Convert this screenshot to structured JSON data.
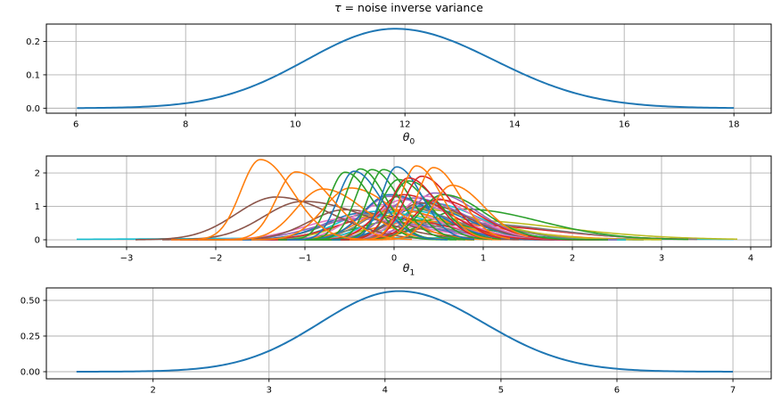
{
  "figure": {
    "background": "#ffffff",
    "grid_color": "#b0b0b0",
    "spine_color": "#000000",
    "tick_color": "#000000",
    "text_color": "#000000",
    "default_line_color": "#1f77b4",
    "palette": [
      "#1f77b4",
      "#ff7f0e",
      "#2ca02c",
      "#d62728",
      "#9467bd",
      "#8c564b",
      "#e377c2",
      "#7f7f7f",
      "#bcbd22",
      "#17becf"
    ]
  },
  "titles": {
    "tau": {
      "prefix": "τ",
      "rest": " = noise inverse variance"
    },
    "theta0": {
      "base": "θ",
      "sub": "0"
    },
    "theta1": {
      "base": "θ",
      "sub": "1"
    }
  },
  "chart_data": [
    {
      "id": "tau",
      "type": "line",
      "title": "τ = noise inverse variance",
      "curve_model": "piecewise-gaussian",
      "grid": true,
      "xlim": [
        5.46,
        18.68
      ],
      "ylim": [
        -0.015,
        0.252
      ],
      "xticks": [
        {
          "v": 6,
          "label": "6"
        },
        {
          "v": 8,
          "label": "8"
        },
        {
          "v": 10,
          "label": "10"
        },
        {
          "v": 12,
          "label": "12"
        },
        {
          "v": 14,
          "label": "14"
        },
        {
          "v": 16,
          "label": "16"
        },
        {
          "v": 18,
          "label": "18"
        }
      ],
      "yticks": [
        {
          "v": 0,
          "label": "0.0"
        },
        {
          "v": 0.1,
          "label": "0.1"
        },
        {
          "v": 0.2,
          "label": "0.2"
        }
      ],
      "peak": {
        "x": 11.8,
        "y": 0.24
      },
      "curves": [
        {
          "color": "#1f77b4",
          "mu": 11.82,
          "peak": 0.238,
          "sigma_left": 1.62,
          "sigma_right": 1.8,
          "x_start": 6.02,
          "x_end": 18.0
        }
      ]
    },
    {
      "id": "theta0",
      "type": "line",
      "title": "θ0",
      "curve_model": "piecewise-gaussian",
      "grid": true,
      "xlim": [
        -3.9,
        4.23
      ],
      "ylim": [
        -0.213,
        2.507
      ],
      "xticks": [
        {
          "v": -3,
          "label": "−3"
        },
        {
          "v": -2,
          "label": "−2"
        },
        {
          "v": -1,
          "label": "−1"
        },
        {
          "v": 0,
          "label": "0"
        },
        {
          "v": 1,
          "label": "1"
        },
        {
          "v": 2,
          "label": "2"
        },
        {
          "v": 3,
          "label": "3"
        },
        {
          "v": 4,
          "label": "4"
        }
      ],
      "yticks": [
        {
          "v": 0,
          "label": "0"
        },
        {
          "v": 1,
          "label": "1"
        },
        {
          "v": 2,
          "label": "2"
        }
      ],
      "y_max_observed": 2.4,
      "curves": [
        {
          "color": "#17becf",
          "mu": 0.1,
          "peak": 0.06,
          "sigma_left": 2.2,
          "sigma_right": 2.2,
          "x_start": -3.56,
          "x_end": 3.81
        },
        {
          "color": "#bcbd22",
          "mu": 0.55,
          "peak": 0.62,
          "sigma_left": 0.55,
          "sigma_right": 1.25,
          "x_start": -2.2,
          "x_end": 3.85
        },
        {
          "color": "#e377c2",
          "mu": 0.6,
          "peak": 0.5,
          "sigma_left": 0.55,
          "sigma_right": 1.05,
          "x_start": -2.2,
          "x_end": 3.4
        },
        {
          "color": "#d62728",
          "mu": 0.75,
          "peak": 0.45,
          "sigma_left": 0.6,
          "sigma_right": 1.0,
          "x_start": -2.0,
          "x_end": 3.3
        },
        {
          "color": "#7f7f7f",
          "mu": 0.8,
          "peak": 0.5,
          "sigma_left": 0.55,
          "sigma_right": 0.95,
          "x_start": -1.8,
          "x_end": 3.4
        },
        {
          "color": "#2ca02c",
          "mu": 0.78,
          "peak": 0.92,
          "sigma_left": 0.4,
          "sigma_right": 0.85,
          "x_start": -1.6,
          "x_end": 3.3
        },
        {
          "color": "#bcbd22",
          "mu": -0.1,
          "peak": 0.8,
          "sigma_left": 0.45,
          "sigma_right": 0.75,
          "x_start": -2.2,
          "x_end": 2.6
        },
        {
          "color": "#17becf",
          "mu": -0.2,
          "peak": 0.85,
          "sigma_left": 0.42,
          "sigma_right": 0.65,
          "x_start": -2.2,
          "x_end": 2.4
        },
        {
          "color": "#7f7f7f",
          "mu": -0.3,
          "peak": 0.75,
          "sigma_left": 0.45,
          "sigma_right": 0.7,
          "x_start": -2.4,
          "x_end": 2.4
        },
        {
          "color": "#1f77b4",
          "mu": -0.35,
          "peak": 0.8,
          "sigma_left": 0.42,
          "sigma_right": 0.62,
          "x_start": -2.4,
          "x_end": 2.2
        },
        {
          "color": "#d62728",
          "mu": -0.15,
          "peak": 0.7,
          "sigma_left": 0.48,
          "sigma_right": 0.7,
          "x_start": -2.4,
          "x_end": 2.4
        },
        {
          "color": "#9467bd",
          "mu": -0.4,
          "peak": 0.62,
          "sigma_left": 0.5,
          "sigma_right": 0.8,
          "x_start": -2.5,
          "x_end": 2.5
        },
        {
          "color": "#2ca02c",
          "mu": 0.1,
          "peak": 0.6,
          "sigma_left": 0.5,
          "sigma_right": 0.8,
          "x_start": -2.2,
          "x_end": 2.8
        },
        {
          "color": "#ff7f0e",
          "mu": 0.3,
          "peak": 0.55,
          "sigma_left": 0.55,
          "sigma_right": 0.9,
          "x_start": -2.2,
          "x_end": 3.0
        },
        {
          "color": "#e377c2",
          "mu": -0.5,
          "peak": 0.65,
          "sigma_left": 0.5,
          "sigma_right": 0.75,
          "x_start": -2.5,
          "x_end": 2.2
        },
        {
          "color": "#8c564b",
          "mu": -0.55,
          "peak": 0.9,
          "sigma_left": 0.4,
          "sigma_right": 0.6,
          "x_start": -2.4,
          "x_end": 2.0
        },
        {
          "color": "#17becf",
          "mu": 0.1,
          "peak": 0.9,
          "sigma_left": 0.36,
          "sigma_right": 0.6,
          "x_start": -1.8,
          "x_end": 2.6
        },
        {
          "color": "#7f7f7f",
          "mu": 0.35,
          "peak": 0.9,
          "sigma_left": 0.36,
          "sigma_right": 0.68,
          "x_start": -1.6,
          "x_end": 2.8
        },
        {
          "color": "#bcbd22",
          "mu": 0.2,
          "peak": 0.95,
          "sigma_left": 0.36,
          "sigma_right": 0.8,
          "x_start": -1.7,
          "x_end": 3.0
        },
        {
          "color": "#17becf",
          "mu": 0.4,
          "peak": 1.1,
          "sigma_left": 0.32,
          "sigma_right": 0.55,
          "x_start": -1.4,
          "x_end": 2.6
        },
        {
          "color": "#e377c2",
          "mu": -0.15,
          "peak": 1.05,
          "sigma_left": 0.34,
          "sigma_right": 0.58,
          "x_start": -1.9,
          "x_end": 2.2
        },
        {
          "color": "#7f7f7f",
          "mu": 0.05,
          "peak": 1.0,
          "sigma_left": 0.36,
          "sigma_right": 0.6,
          "x_start": -1.8,
          "x_end": 2.4
        },
        {
          "color": "#1f77b4",
          "mu": 0.3,
          "peak": 1.0,
          "sigma_left": 0.33,
          "sigma_right": 0.52,
          "x_start": -1.4,
          "x_end": 2.3
        },
        {
          "color": "#ff7f0e",
          "mu": 0.0,
          "peak": 0.9,
          "sigma_left": 0.38,
          "sigma_right": 0.6,
          "x_start": -1.9,
          "x_end": 2.4
        },
        {
          "color": "#9467bd",
          "mu": 0.2,
          "peak": 1.25,
          "sigma_left": 0.3,
          "sigma_right": 0.58,
          "x_start": -1.5,
          "x_end": 2.5
        },
        {
          "color": "#e377c2",
          "mu": 0.1,
          "peak": 1.2,
          "sigma_left": 0.3,
          "sigma_right": 0.55,
          "x_start": -1.5,
          "x_end": 2.3
        },
        {
          "color": "#9467bd",
          "mu": -0.05,
          "peak": 1.3,
          "sigma_left": 0.3,
          "sigma_right": 0.52,
          "x_start": -1.7,
          "x_end": 2.2
        },
        {
          "color": "#1f77b4",
          "mu": -0.05,
          "peak": 1.35,
          "sigma_left": 0.3,
          "sigma_right": 0.5,
          "x_start": -1.7,
          "x_end": 2.1
        },
        {
          "color": "#d62728",
          "mu": 0.1,
          "peak": 1.35,
          "sigma_left": 0.28,
          "sigma_right": 0.5,
          "x_start": -1.5,
          "x_end": 2.2
        },
        {
          "color": "#8c564b",
          "mu": 0.3,
          "peak": 1.1,
          "sigma_left": 0.3,
          "sigma_right": 0.52,
          "x_start": -1.3,
          "x_end": 2.3
        },
        {
          "color": "#9467bd",
          "mu": 0.45,
          "peak": 1.4,
          "sigma_left": 0.26,
          "sigma_right": 0.48,
          "x_start": -1.1,
          "x_end": 2.3
        },
        {
          "color": "#e377c2",
          "mu": 0.35,
          "peak": 1.3,
          "sigma_left": 0.28,
          "sigma_right": 0.5,
          "x_start": -1.2,
          "x_end": 2.3
        },
        {
          "color": "#d62728",
          "mu": 0.5,
          "peak": 1.2,
          "sigma_left": 0.27,
          "sigma_right": 0.46,
          "x_start": -1.0,
          "x_end": 2.3
        },
        {
          "color": "#2ca02c",
          "mu": 0.55,
          "peak": 1.35,
          "sigma_left": 0.26,
          "sigma_right": 0.46,
          "x_start": -1.0,
          "x_end": 2.4
        },
        {
          "color": "#8c564b",
          "mu": -1.32,
          "peak": 1.28,
          "sigma_left": 0.45,
          "sigma_right": 0.62,
          "x_start": -2.9,
          "x_end": 0.9
        },
        {
          "color": "#8c564b",
          "mu": -1.02,
          "peak": 1.15,
          "sigma_left": 0.44,
          "sigma_right": 0.72,
          "x_start": -2.6,
          "x_end": 1.4
        },
        {
          "color": "#ff7f0e",
          "mu": -0.8,
          "peak": 1.52,
          "sigma_left": 0.3,
          "sigma_right": 0.46,
          "x_start": -1.9,
          "x_end": 0.9
        },
        {
          "color": "#ff7f0e",
          "mu": -0.49,
          "peak": 1.55,
          "sigma_left": 0.3,
          "sigma_right": 0.48,
          "x_start": -1.6,
          "x_end": 1.2
        },
        {
          "color": "#2ca02c",
          "mu": -0.55,
          "peak": 2.02,
          "sigma_left": 0.18,
          "sigma_right": 0.3,
          "x_start": -1.3,
          "x_end": 0.6
        },
        {
          "color": "#2ca02c",
          "mu": -0.38,
          "peak": 2.12,
          "sigma_left": 0.17,
          "sigma_right": 0.28,
          "x_start": -1.1,
          "x_end": 0.7
        },
        {
          "color": "#2ca02c",
          "mu": -0.25,
          "peak": 2.1,
          "sigma_left": 0.18,
          "sigma_right": 0.3,
          "x_start": -1.0,
          "x_end": 0.8
        },
        {
          "color": "#2ca02c",
          "mu": -0.12,
          "peak": 2.1,
          "sigma_left": 0.17,
          "sigma_right": 0.3,
          "x_start": -0.9,
          "x_end": 0.9
        },
        {
          "color": "#2ca02c",
          "mu": 0.05,
          "peak": 1.8,
          "sigma_left": 0.2,
          "sigma_right": 0.33,
          "x_start": -0.8,
          "x_end": 1.1
        },
        {
          "color": "#2ca02c",
          "mu": 0.16,
          "peak": 1.76,
          "sigma_left": 0.2,
          "sigma_right": 0.35,
          "x_start": -0.7,
          "x_end": 1.2
        },
        {
          "color": "#1f77b4",
          "mu": -0.45,
          "peak": 2.05,
          "sigma_left": 0.18,
          "sigma_right": 0.3,
          "x_start": -1.2,
          "x_end": 0.6
        },
        {
          "color": "#1f77b4",
          "mu": 0.03,
          "peak": 2.18,
          "sigma_left": 0.17,
          "sigma_right": 0.28,
          "x_start": -0.7,
          "x_end": 0.9
        },
        {
          "color": "#d62728",
          "mu": 0.16,
          "peak": 1.85,
          "sigma_left": 0.2,
          "sigma_right": 0.32,
          "x_start": -0.6,
          "x_end": 1.1
        },
        {
          "color": "#d62728",
          "mu": 0.31,
          "peak": 1.9,
          "sigma_left": 0.2,
          "sigma_right": 0.33,
          "x_start": -0.5,
          "x_end": 1.2
        },
        {
          "color": "#ff7f0e",
          "mu": 0.25,
          "peak": 2.21,
          "sigma_left": 0.17,
          "sigma_right": 0.28,
          "x_start": -0.5,
          "x_end": 1.1
        },
        {
          "color": "#ff7f0e",
          "mu": 0.44,
          "peak": 2.16,
          "sigma_left": 0.18,
          "sigma_right": 0.3,
          "x_start": -0.4,
          "x_end": 1.3
        },
        {
          "color": "#ff7f0e",
          "mu": 0.65,
          "peak": 1.63,
          "sigma_left": 0.22,
          "sigma_right": 0.36,
          "x_start": -0.3,
          "x_end": 1.5
        },
        {
          "color": "#ff7f0e",
          "mu": -1.5,
          "peak": 2.4,
          "sigma_left": 0.22,
          "sigma_right": 0.36,
          "x_start": -2.5,
          "x_end": -0.3
        },
        {
          "color": "#ff7f0e",
          "mu": -1.1,
          "peak": 2.03,
          "sigma_left": 0.22,
          "sigma_right": 0.4,
          "x_start": -2.2,
          "x_end": 0.2
        }
      ]
    },
    {
      "id": "theta1",
      "type": "line",
      "title": "θ1",
      "curve_model": "piecewise-gaussian",
      "grid": true,
      "xlim": [
        1.08,
        7.33
      ],
      "ylim": [
        -0.05,
        0.5875
      ],
      "xticks": [
        {
          "v": 2,
          "label": "2"
        },
        {
          "v": 3,
          "label": "3"
        },
        {
          "v": 4,
          "label": "4"
        },
        {
          "v": 5,
          "label": "5"
        },
        {
          "v": 6,
          "label": "6"
        },
        {
          "v": 7,
          "label": "7"
        }
      ],
      "yticks": [
        {
          "v": 0,
          "label": "0.00"
        },
        {
          "v": 0.25,
          "label": "0.25"
        },
        {
          "v": 0.5,
          "label": "0.50"
        }
      ],
      "peak": {
        "x": 4.12,
        "y": 0.57
      },
      "curves": [
        {
          "color": "#1f77b4",
          "mu": 4.12,
          "peak": 0.565,
          "sigma_left": 0.68,
          "sigma_right": 0.73,
          "x_start": 1.34,
          "x_end": 7.0
        }
      ]
    }
  ]
}
